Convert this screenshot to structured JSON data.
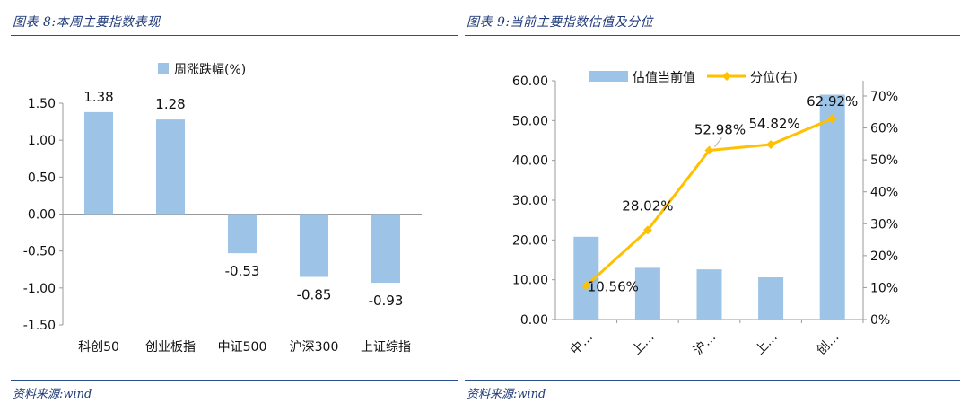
{
  "left_panel": {
    "figure_title": "图表 8:本周主要指数表现",
    "source": "资料来源:wind"
  },
  "right_panel": {
    "figure_title": "图表 9:当前主要指数估值及分位",
    "source": "资料来源:wind"
  },
  "colors": {
    "bar": "#9dc3e6",
    "line": "#ffc000",
    "title": "#1f3a7a",
    "rule": "#2b4d8c",
    "axis": "#999999"
  },
  "chart_data": [
    {
      "type": "bar",
      "categories": [
        "科创50",
        "创业板指",
        "中证500",
        "沪深300",
        "上证综指"
      ],
      "series": [
        {
          "name": "周涨跌幅(%)",
          "values": [
            1.38,
            1.28,
            -0.53,
            -0.85,
            -0.93
          ]
        }
      ],
      "data_labels": [
        "1.38",
        "1.28",
        "-0.53",
        "-0.85",
        "-0.93"
      ],
      "ylim": [
        -1.5,
        1.5
      ],
      "yticks": [
        "1.50",
        "1.00",
        "0.50",
        "0.00",
        "-0.50",
        "-1.00",
        "-1.50"
      ],
      "legend": "top-center",
      "grid": false
    },
    {
      "type": "bar",
      "categories": [
        "中…",
        "上…",
        "沪…",
        "上…",
        "创…"
      ],
      "series": [
        {
          "name": "估值当前值",
          "type": "bar",
          "axis": "left",
          "values": [
            20.8,
            13.0,
            12.6,
            10.6,
            56.5
          ]
        },
        {
          "name": "分位(右)",
          "type": "line",
          "axis": "right",
          "values": [
            10.56,
            28.02,
            52.98,
            54.82,
            62.92
          ]
        }
      ],
      "line_labels": [
        "10.56%",
        "28.02%",
        "52.98%",
        "54.82%",
        "62.92%"
      ],
      "ylim_left": [
        0,
        60
      ],
      "yticks_left": [
        "60.00",
        "50.00",
        "40.00",
        "30.00",
        "20.00",
        "10.00",
        "0.00"
      ],
      "ylim_right": [
        0,
        70
      ],
      "yticks_right": [
        "70%",
        "60%",
        "50%",
        "40%",
        "30%",
        "20%",
        "10%",
        "0%"
      ],
      "legend": "top-center",
      "grid": false
    }
  ]
}
